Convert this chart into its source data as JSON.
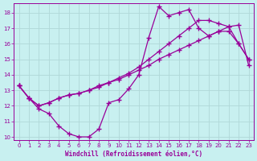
{
  "xlabel": "Windchill (Refroidissement éolien,°C)",
  "bg_color": "#c8f0f0",
  "line_color": "#990099",
  "grid_color": "#b0d8d8",
  "xlim": [
    -0.5,
    23.5
  ],
  "ylim": [
    9.8,
    18.6
  ],
  "xticks": [
    0,
    1,
    2,
    3,
    4,
    5,
    6,
    7,
    8,
    9,
    10,
    11,
    12,
    13,
    14,
    15,
    16,
    17,
    18,
    19,
    20,
    21,
    22,
    23
  ],
  "yticks": [
    10,
    11,
    12,
    13,
    14,
    15,
    16,
    17,
    18
  ],
  "line1_x": [
    0,
    1,
    2,
    3,
    4,
    5,
    6,
    7,
    8,
    9,
    10,
    11,
    12,
    13,
    14,
    15,
    16,
    17,
    18,
    19,
    20,
    21,
    22,
    23
  ],
  "line1_y": [
    13.3,
    12.5,
    11.8,
    11.5,
    10.7,
    10.2,
    10.0,
    10.0,
    10.5,
    12.2,
    12.4,
    13.1,
    14.0,
    16.4,
    18.4,
    17.8,
    18.0,
    18.2,
    17.0,
    16.5,
    16.8,
    16.8,
    16.0,
    15.0
  ],
  "line2_x": [
    0,
    1,
    2,
    3,
    4,
    5,
    6,
    7,
    8,
    9,
    10,
    11,
    12,
    13,
    14,
    15,
    16,
    17,
    18,
    19,
    20,
    21,
    22,
    23
  ],
  "line2_y": [
    13.3,
    12.5,
    12.0,
    12.2,
    12.5,
    12.7,
    12.8,
    13.0,
    13.2,
    13.5,
    13.7,
    14.0,
    14.3,
    14.6,
    15.0,
    15.3,
    15.6,
    15.9,
    16.2,
    16.5,
    16.8,
    17.1,
    17.2,
    14.6
  ],
  "line3_x": [
    0,
    1,
    2,
    3,
    4,
    5,
    6,
    7,
    8,
    9,
    10,
    11,
    12,
    13,
    14,
    15,
    16,
    17,
    18,
    19,
    20,
    21,
    22,
    23
  ],
  "line3_y": [
    13.3,
    12.5,
    12.0,
    12.2,
    12.5,
    12.7,
    12.8,
    13.0,
    13.3,
    13.5,
    13.8,
    14.1,
    14.5,
    15.0,
    15.5,
    16.0,
    16.5,
    17.0,
    17.5,
    17.5,
    17.3,
    17.1,
    16.0,
    15.0
  ]
}
